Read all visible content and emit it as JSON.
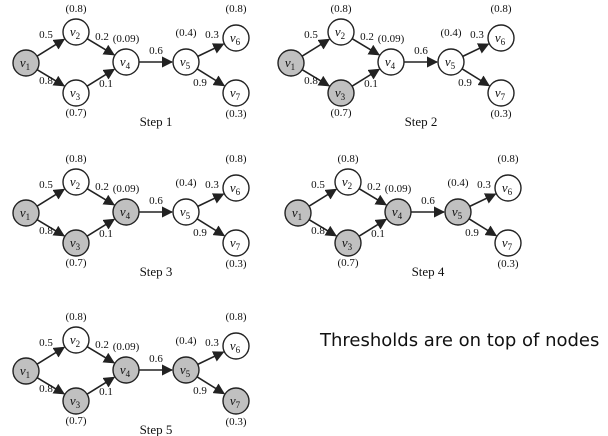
{
  "colors": {
    "active": "#c0c0c0",
    "inactive": "#ffffff",
    "stroke": "#222222"
  },
  "nodes": [
    {
      "id": "v1",
      "base": "v",
      "sub": "1",
      "threshold": ""
    },
    {
      "id": "v2",
      "base": "v",
      "sub": "2",
      "threshold": "(0.8)"
    },
    {
      "id": "v3",
      "base": "v",
      "sub": "3",
      "threshold": "(0.7)"
    },
    {
      "id": "v4",
      "base": "v",
      "sub": "4",
      "threshold": "(0.09)"
    },
    {
      "id": "v5",
      "base": "v",
      "sub": "5",
      "threshold": "(0.4)"
    },
    {
      "id": "v6",
      "base": "v",
      "sub": "6",
      "threshold": "(0.8)"
    },
    {
      "id": "v7",
      "base": "v",
      "sub": "7",
      "threshold": "(0.3)"
    }
  ],
  "edges": [
    {
      "from": "v1",
      "to": "v2",
      "weight": "0.5"
    },
    {
      "from": "v1",
      "to": "v3",
      "weight": "0.8"
    },
    {
      "from": "v2",
      "to": "v4",
      "weight": "0.2"
    },
    {
      "from": "v3",
      "to": "v4",
      "weight": "0.1"
    },
    {
      "from": "v4",
      "to": "v5",
      "weight": "0.6"
    },
    {
      "from": "v5",
      "to": "v6",
      "weight": "0.3"
    },
    {
      "from": "v5",
      "to": "v7",
      "weight": "0.9"
    }
  ],
  "steps": [
    {
      "label": "Step 1",
      "active": [
        "v1"
      ]
    },
    {
      "label": "Step 2",
      "active": [
        "v1",
        "v3"
      ]
    },
    {
      "label": "Step 3",
      "active": [
        "v1",
        "v3",
        "v4"
      ]
    },
    {
      "label": "Step 4",
      "active": [
        "v1",
        "v3",
        "v4",
        "v5"
      ]
    },
    {
      "label": "Step 5",
      "active": [
        "v1",
        "v3",
        "v4",
        "v5",
        "v7"
      ]
    }
  ],
  "note": "Thresholds are on top of nodes"
}
